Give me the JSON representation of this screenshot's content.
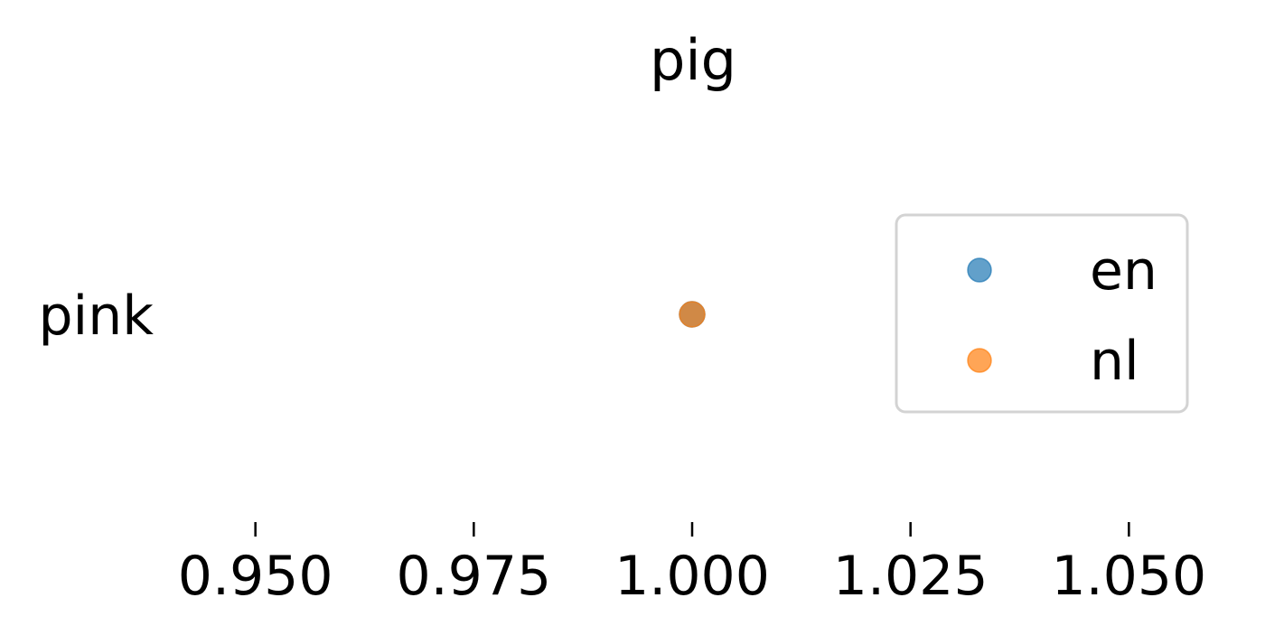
{
  "chart_data": {
    "type": "scatter",
    "title": "pig",
    "xlabel": "",
    "ylabel": "",
    "xlim": [
      0.94,
      1.06
    ],
    "xticks": [
      0.95,
      0.975,
      1.0,
      1.025,
      1.05
    ],
    "xtick_labels": [
      "0.950",
      "0.975",
      "1.000",
      "1.025",
      "1.050"
    ],
    "categories": [
      "pink"
    ],
    "series": [
      {
        "name": "en",
        "color": "#1f77b4",
        "points": [
          {
            "category": "pink",
            "x": 1.0
          }
        ]
      },
      {
        "name": "nl",
        "color": "#ff7f0e",
        "points": [
          {
            "category": "pink",
            "x": 1.0
          }
        ]
      }
    ],
    "marker_alpha": 0.7,
    "legend": {
      "placement": "right",
      "entries": [
        "en",
        "nl"
      ]
    },
    "grid": false
  }
}
